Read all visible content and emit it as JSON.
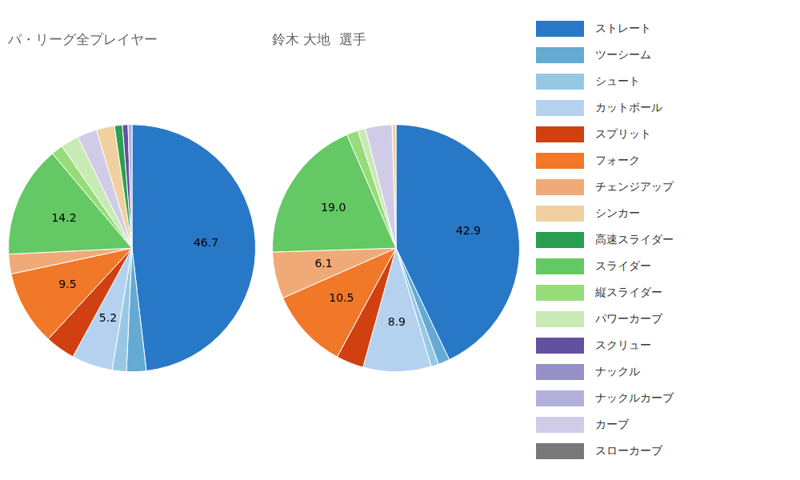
{
  "chart_data": [
    {
      "type": "pie",
      "title": "パ・リーグ全プレイヤー",
      "categories": [
        "ストレート",
        "ツーシーム",
        "シュート",
        "カットボール",
        "スプリット",
        "フォーク",
        "チェンジアップ",
        "スライダー",
        "縦スライダー",
        "パワーカーブ",
        "カーブ",
        "シンカー",
        "高速スライダー",
        "スクリュー",
        "ナックルカーブ"
      ],
      "values": [
        46.7,
        2.5,
        1.8,
        5.2,
        3.8,
        9.5,
        2.5,
        14.2,
        1.5,
        2.3,
        2.5,
        2.3,
        1.0,
        0.7,
        0.5
      ],
      "value_labels": [
        "46.7",
        null,
        null,
        "5.2",
        null,
        "9.5",
        null,
        "14.2",
        null,
        null,
        null,
        null,
        null,
        null,
        null
      ],
      "colors": [
        "#2878c8",
        "#64aad2",
        "#96c8e6",
        "#b4d2f0",
        "#d04010",
        "#f07828",
        "#f0aa78",
        "#64c864",
        "#96dc78",
        "#c8eab4",
        "#d0cce8",
        "#f0d0a0",
        "#28a050",
        "#6450a0",
        "#b4b0dc"
      ],
      "data_labels": true
    },
    {
      "type": "pie",
      "title": "鈴木 大地  選手",
      "categories": [
        "ストレート",
        "ツーシーム",
        "シュート",
        "カットボール",
        "スプリット",
        "フォーク",
        "チェンジアップ",
        "スライダー",
        "縦スライダー",
        "パワーカーブ",
        "カーブ",
        "シンカー"
      ],
      "values": [
        42.9,
        1.5,
        1.0,
        8.9,
        3.6,
        10.5,
        6.1,
        19.0,
        1.5,
        1.0,
        3.5,
        0.5
      ],
      "value_labels": [
        "42.9",
        null,
        null,
        "8.9",
        null,
        "10.5",
        "6.1",
        "19.0",
        null,
        null,
        null,
        null
      ],
      "colors": [
        "#2878c8",
        "#64aad2",
        "#96c8e6",
        "#b4d2f0",
        "#d04010",
        "#f07828",
        "#f0aa78",
        "#64c864",
        "#96dc78",
        "#c8eab4",
        "#d0cce8",
        "#f0d0a0"
      ],
      "data_labels": true
    }
  ],
  "legend_entries": [
    {
      "name": "ストレート",
      "color": "#2878c8"
    },
    {
      "name": "ツーシーム",
      "color": "#64aad2"
    },
    {
      "name": "シュート",
      "color": "#96c8e6"
    },
    {
      "name": "カットボール",
      "color": "#b4d2f0"
    },
    {
      "name": "スプリット",
      "color": "#d04010"
    },
    {
      "name": "フォーク",
      "color": "#f07828"
    },
    {
      "name": "チェンジアップ",
      "color": "#f0aa78"
    },
    {
      "name": "シンカー",
      "color": "#f0d0a0"
    },
    {
      "name": "高速スライダー",
      "color": "#28a050"
    },
    {
      "name": "スライダー",
      "color": "#64c864"
    },
    {
      "name": "縦スライダー",
      "color": "#96dc78"
    },
    {
      "name": "パワーカーブ",
      "color": "#c8eab4"
    },
    {
      "name": "スクリュー",
      "color": "#6450a0"
    },
    {
      "name": "ナックル",
      "color": "#9690c8"
    },
    {
      "name": "ナックルカーブ",
      "color": "#b4b0dc"
    },
    {
      "name": "カーブ",
      "color": "#d0cce8"
    },
    {
      "name": "スローカーブ",
      "color": "#787878"
    }
  ]
}
